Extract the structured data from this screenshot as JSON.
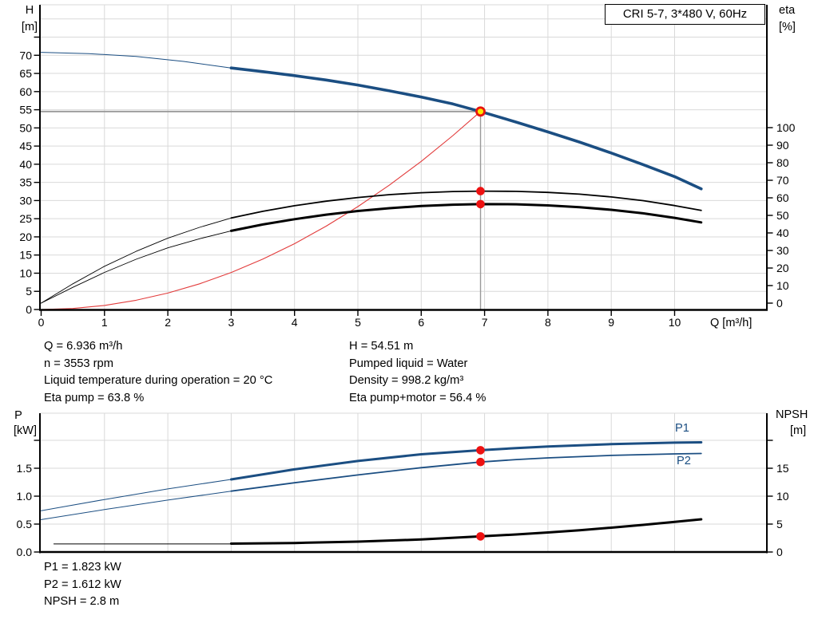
{
  "title": "CRI 5-7, 3*480 V, 60Hz",
  "colors": {
    "navy": "#1b4e82",
    "black": "#000000",
    "red": "#e23b3b",
    "dot_red": "#ee1111",
    "op_fill": "#ffe600",
    "op_ring": "#e8140c",
    "grid": "#d9d9d9",
    "op_line": "#999999",
    "axis": "#000000"
  },
  "axis_titles": {
    "head": "H",
    "head_unit": "[m]",
    "eta": "eta",
    "eta_unit": "[%]",
    "flow": "Q [m³/h]",
    "power": "P",
    "power_unit": "[kW]",
    "npsh": "NPSH",
    "npsh_unit": "[m]"
  },
  "info_left": [
    "Q = 6.936 m³/h",
    "n = 3553 rpm",
    "Liquid temperature during operation = 20 °C",
    "Eta pump = 63.8 %"
  ],
  "info_right": [
    "H = 54.51 m",
    "Pumped liquid = Water",
    "Density = 998.2 kg/m³",
    "Eta pump+motor = 56.4 %"
  ],
  "info_bottom": [
    "P1 = 1.823 kW",
    "P2 = 1.612 kW",
    "NPSH = 2.8 m"
  ],
  "curve_labels": {
    "p1": "P1",
    "p2": "P2"
  },
  "operating_point": {
    "q": 6.936,
    "h": 54.51,
    "eta_pump": 63.8,
    "eta_pump_motor": 56.4,
    "p1_kw": 1.823,
    "p2_kw": 1.612,
    "npsh_m": 2.8
  },
  "chart_data": [
    {
      "type": "line",
      "title": "CRI 5-7, 3*480 V, 60Hz",
      "xlabel": "Q [m³/h]",
      "x_ticks": [
        0,
        1,
        2,
        3,
        4,
        5,
        6,
        7,
        8,
        9,
        10
      ],
      "x_range": [
        0,
        11.45
      ],
      "left_axis": {
        "label": "H [m]",
        "ticks": [
          0,
          5,
          10,
          15,
          20,
          25,
          30,
          35,
          40,
          45,
          50,
          55,
          60,
          65,
          70
        ],
        "unlabeled_tick": 75,
        "grid_step": 5,
        "grid_max": 80
      },
      "right_axis": {
        "label": "eta [%]",
        "ticks": [
          0,
          10,
          20,
          30,
          40,
          50,
          60,
          70,
          80,
          90,
          100
        ]
      },
      "grid": true,
      "series": [
        {
          "name": "head-curve-thin",
          "axis": "H",
          "color": "navy",
          "width": 1,
          "points": [
            [
              0,
              70.8
            ],
            [
              0.75,
              70.45
            ],
            [
              1.5,
              69.7
            ],
            [
              2.25,
              68.3
            ],
            [
              3,
              66.5
            ]
          ]
        },
        {
          "name": "head-curve",
          "axis": "H",
          "color": "navy",
          "width": 3.6,
          "points": [
            [
              3,
              66.5
            ],
            [
              3.5,
              65.5
            ],
            [
              4,
              64.4
            ],
            [
              4.5,
              63.2
            ],
            [
              5,
              61.8
            ],
            [
              5.5,
              60.2
            ],
            [
              6,
              58.5
            ],
            [
              6.5,
              56.6
            ],
            [
              6.936,
              54.51
            ],
            [
              7.5,
              51.6
            ],
            [
              8,
              48.9
            ],
            [
              8.5,
              46.1
            ],
            [
              9,
              43.1
            ],
            [
              9.5,
              39.9
            ],
            [
              10,
              36.6
            ],
            [
              10.42,
              33.2
            ]
          ]
        },
        {
          "name": "system-curve",
          "axis": "H",
          "color": "red",
          "width": 1.1,
          "points": [
            [
              0,
              0
            ],
            [
              0.5,
              0.28
            ],
            [
              1,
              1.13
            ],
            [
              1.5,
              2.55
            ],
            [
              2,
              4.53
            ],
            [
              2.5,
              7.08
            ],
            [
              3,
              10.2
            ],
            [
              3.5,
              13.88
            ],
            [
              4,
              18.13
            ],
            [
              4.5,
              22.95
            ],
            [
              5,
              28.33
            ],
            [
              5.5,
              34.28
            ],
            [
              6,
              40.79
            ],
            [
              6.5,
              47.87
            ],
            [
              6.936,
              54.51
            ]
          ]
        },
        {
          "name": "eta-pump-curve-thin",
          "axis": "eta",
          "color": "black",
          "width": 0.9,
          "points": [
            [
              0,
              0
            ],
            [
              0.5,
              11
            ],
            [
              1,
              21
            ],
            [
              1.5,
              29.5
            ],
            [
              2,
              37
            ],
            [
              2.5,
              43.2
            ],
            [
              3,
              48.5
            ]
          ]
        },
        {
          "name": "eta-pump-curve",
          "axis": "eta",
          "color": "black",
          "width": 1.8,
          "points": [
            [
              3,
              48.5
            ],
            [
              3.5,
              52.3
            ],
            [
              4,
              55.5
            ],
            [
              4.5,
              58.1
            ],
            [
              5,
              60.2
            ],
            [
              5.5,
              61.8
            ],
            [
              6,
              62.9
            ],
            [
              6.5,
              63.6
            ],
            [
              6.936,
              63.8
            ],
            [
              7.5,
              63.7
            ],
            [
              8,
              63.1
            ],
            [
              8.5,
              62.1
            ],
            [
              9,
              60.5
            ],
            [
              9.5,
              58.4
            ],
            [
              10,
              55.6
            ],
            [
              10.42,
              52.8
            ]
          ]
        },
        {
          "name": "eta-pump-motor-curve-thin",
          "axis": "eta",
          "color": "black",
          "width": 0.9,
          "points": [
            [
              0,
              0
            ],
            [
              0.5,
              9
            ],
            [
              1,
              17.5
            ],
            [
              1.5,
              25
            ],
            [
              2,
              31.5
            ],
            [
              2.5,
              36.7
            ],
            [
              3,
              41.2
            ]
          ]
        },
        {
          "name": "eta-pump-motor-curve",
          "axis": "eta",
          "color": "black",
          "width": 3,
          "points": [
            [
              3,
              41.2
            ],
            [
              3.5,
              44.8
            ],
            [
              4,
              47.8
            ],
            [
              4.5,
              50.4
            ],
            [
              5,
              52.5
            ],
            [
              5.5,
              54.1
            ],
            [
              6,
              55.3
            ],
            [
              6.5,
              56.1
            ],
            [
              6.936,
              56.4
            ],
            [
              7.5,
              56.3
            ],
            [
              8,
              55.7
            ],
            [
              8.5,
              54.7
            ],
            [
              9,
              53.2
            ],
            [
              9.5,
              51.2
            ],
            [
              10,
              48.6
            ],
            [
              10.42,
              46
            ]
          ]
        }
      ],
      "dots": [
        {
          "q": 6.936,
          "axis": "eta",
          "v": 63.8
        },
        {
          "q": 6.936,
          "axis": "eta",
          "v": 56.4
        }
      ],
      "operating_point": {
        "q": 6.936,
        "axis": "H",
        "v": 54.51
      }
    },
    {
      "type": "line",
      "xlabel": "",
      "x_ticks": [
        1,
        2,
        3,
        4,
        5,
        6,
        7,
        8,
        9,
        10
      ],
      "x_range": [
        0,
        11.45
      ],
      "left_axis": {
        "label": "P [kW]",
        "ticks": [
          0,
          0.5,
          1,
          1.5
        ],
        "tick_labels": [
          "0.0",
          "0.5",
          "1.0",
          "1.5"
        ],
        "unlabeled_tick": 2,
        "grid": [
          0.5,
          1,
          1.5,
          2
        ]
      },
      "right_axis": {
        "label": "NPSH [m]",
        "ticks": [
          0,
          5,
          10,
          15
        ],
        "unlabeled_tick": 20
      },
      "series": [
        {
          "name": "p1-curve-thin",
          "axis": "P",
          "color": "navy",
          "width": 1,
          "points": [
            [
              0,
              0.74
            ],
            [
              1,
              0.94
            ],
            [
              2,
              1.13
            ],
            [
              3,
              1.3
            ]
          ]
        },
        {
          "name": "p1-curve",
          "axis": "P",
          "color": "navy",
          "width": 3,
          "points": [
            [
              3,
              1.3
            ],
            [
              4,
              1.48
            ],
            [
              5,
              1.63
            ],
            [
              6,
              1.75
            ],
            [
              6.936,
              1.823
            ],
            [
              7.5,
              1.862
            ],
            [
              8,
              1.89
            ],
            [
              9,
              1.932
            ],
            [
              10,
              1.958
            ],
            [
              10.42,
              1.965
            ]
          ]
        },
        {
          "name": "p2-curve-thin",
          "axis": "P",
          "color": "navy",
          "width": 1,
          "points": [
            [
              0,
              0.58
            ],
            [
              1,
              0.76
            ],
            [
              2,
              0.93
            ],
            [
              3,
              1.09
            ]
          ]
        },
        {
          "name": "p2-curve",
          "axis": "P",
          "color": "navy",
          "width": 1.8,
          "points": [
            [
              3,
              1.09
            ],
            [
              4,
              1.24
            ],
            [
              5,
              1.38
            ],
            [
              6,
              1.51
            ],
            [
              6.936,
              1.612
            ],
            [
              7.5,
              1.655
            ],
            [
              8,
              1.685
            ],
            [
              9,
              1.73
            ],
            [
              10,
              1.757
            ],
            [
              10.42,
              1.765
            ]
          ]
        },
        {
          "name": "npsh-curve-thin",
          "axis": "NPSH",
          "color": "black",
          "width": 1,
          "points": [
            [
              0.2,
              1.45
            ],
            [
              3,
              1.45
            ]
          ]
        },
        {
          "name": "npsh-curve",
          "axis": "NPSH",
          "color": "black",
          "width": 3,
          "points": [
            [
              3,
              1.5
            ],
            [
              4,
              1.62
            ],
            [
              5,
              1.85
            ],
            [
              6,
              2.25
            ],
            [
              6.936,
              2.8
            ],
            [
              7.5,
              3.15
            ],
            [
              8,
              3.5
            ],
            [
              8.5,
              3.9
            ],
            [
              9,
              4.35
            ],
            [
              9.5,
              4.85
            ],
            [
              10,
              5.4
            ],
            [
              10.42,
              5.85
            ]
          ]
        }
      ],
      "dots": [
        {
          "q": 6.936,
          "axis": "P",
          "v": 1.823
        },
        {
          "q": 6.936,
          "axis": "P",
          "v": 1.612
        },
        {
          "q": 6.936,
          "axis": "NPSH",
          "v": 2.8
        }
      ]
    }
  ]
}
